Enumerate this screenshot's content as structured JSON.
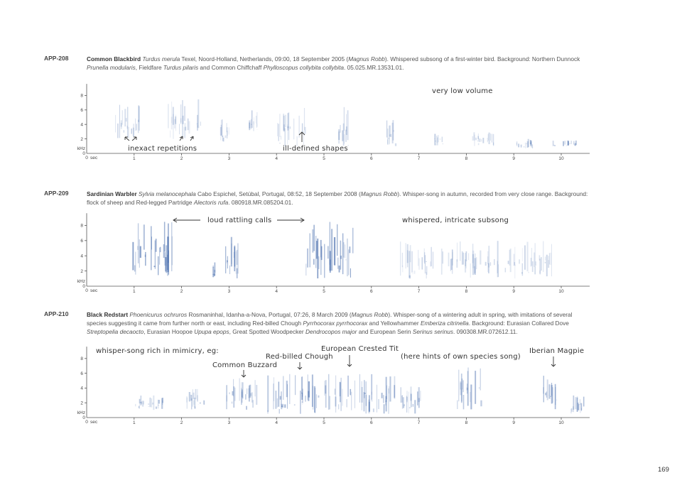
{
  "entries": [
    {
      "id": "APP-208",
      "species": "Common Blackbird",
      "scientific": "Turdus merula",
      "text_main": " Texel, Noord-Holland, Netherlands, 09:00, 18 September 2005 (",
      "recordist": "Magnus Robb",
      "text_after_recordist": "). Whispered subsong of a first-winter bird. Background: Northern Dunnock ",
      "bg1_sci": "Prunella modularis",
      "bg_mid1": ", Fieldfare ",
      "bg2_sci": "Turdus pilaris",
      "bg_mid2": " and Common Chiffchaff ",
      "bg3_sci": "Phylloscopus collybita collybita",
      "bg_end": ". 05.025.MR.13531.01.",
      "annotations": [
        "inexact repetitions",
        "ill-defined shapes",
        "very low volume"
      ]
    },
    {
      "id": "APP-209",
      "species": "Sardinian Warbler",
      "scientific": "Sylvia melanocephala",
      "text_main": " Cabo Espichel, Setúbal, Portugal, 08:52, 18 September 2008 (",
      "recordist": "Magnus Robb",
      "text_after_recordist": "). Whisper-song in autumn, recorded from very close range. Background: flock of sheep and Red-legged Partridge ",
      "bg1_sci": "Alectoris rufa",
      "bg_end": ". 080918.MR.085204.01.",
      "annotations": [
        "loud rattling calls",
        "whispered, intricate subsong"
      ]
    },
    {
      "id": "APP-210",
      "species": "Black Redstart",
      "scientific": "Phoenicurus ochruros",
      "text_main": " Rosmaninhal, Idanha-a-Nova, Portugal, 07:26, 8 March 2009 (",
      "recordist": "Magnus Robb",
      "text_after_recordist": "). Whisper-song of a wintering adult in spring, with imitations of several species suggesting it came from further north or east, including Red-billed Chough ",
      "bg1_sci": "Pyrrhocorax pyrrhocorax",
      "bg_mid1": " and Yellowhammer ",
      "bg2_sci": "Emberiza citrinella",
      "bg_mid2": ". Background: Eurasian Collared Dove ",
      "bg3_sci": "Streptopelia decaocto",
      "bg_mid3": ", Eurasian Hoopoe ",
      "bg4_sci": "Upupa epops",
      "bg_mid4": ", Great Spotted Woodpecker ",
      "bg5_sci": "Dendrocopos major",
      "bg_mid5": " and European Serin ",
      "bg6_sci": "Serinus serinus",
      "bg_end": ". 090308.MR.072612.11.",
      "annotations": [
        "whisper-song rich in mimicry, eg:",
        "Common Buzzard",
        "Red-billed Chough",
        "European Crested Tit",
        "(here hints of own species song)",
        "Iberian Magpie"
      ]
    }
  ],
  "axis": {
    "y_ticks": [
      "2",
      "4",
      "6",
      "8"
    ],
    "x_ticks": [
      "1",
      "2",
      "3",
      "4",
      "5",
      "6",
      "7",
      "8",
      "9",
      "10"
    ],
    "y_unit": "kHz",
    "y_zero": "0",
    "x_zero": "0",
    "x_unit": "sec"
  },
  "page_number": "169",
  "colors": {
    "spectrogram_ink": "#4a6fae",
    "text": "#555555"
  }
}
